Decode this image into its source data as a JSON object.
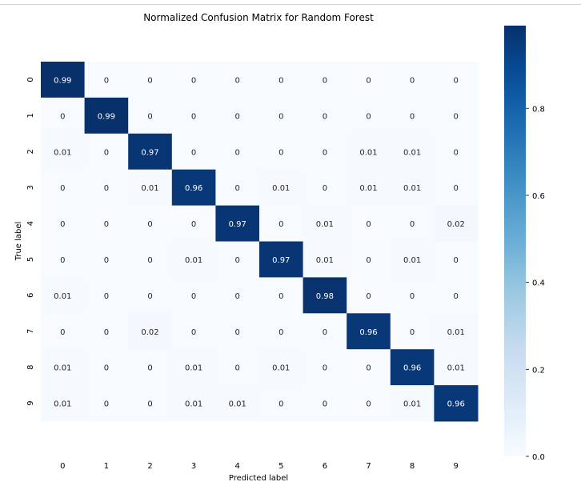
{
  "chart_data": {
    "type": "heatmap",
    "title": "Normalized Confusion Matrix for Random Forest",
    "xlabel": "Predicted label",
    "ylabel": "True label",
    "x_categories": [
      "0",
      "1",
      "2",
      "3",
      "4",
      "5",
      "6",
      "7",
      "8",
      "9"
    ],
    "y_categories": [
      "0",
      "1",
      "2",
      "3",
      "4",
      "5",
      "6",
      "7",
      "8",
      "9"
    ],
    "values": [
      [
        0.99,
        0,
        0,
        0,
        0,
        0,
        0,
        0,
        0,
        0
      ],
      [
        0,
        0.99,
        0,
        0,
        0,
        0,
        0,
        0,
        0,
        0
      ],
      [
        0.01,
        0,
        0.97,
        0,
        0,
        0,
        0,
        0.01,
        0.01,
        0
      ],
      [
        0,
        0,
        0.01,
        0.96,
        0,
        0.01,
        0,
        0.01,
        0.01,
        0
      ],
      [
        0,
        0,
        0,
        0,
        0.97,
        0,
        0.01,
        0,
        0,
        0.02
      ],
      [
        0,
        0,
        0,
        0.01,
        0,
        0.97,
        0.01,
        0,
        0.01,
        0
      ],
      [
        0.01,
        0,
        0,
        0,
        0,
        0,
        0.98,
        0,
        0,
        0
      ],
      [
        0,
        0,
        0.02,
        0,
        0,
        0,
        0,
        0.96,
        0,
        0.01
      ],
      [
        0.01,
        0,
        0,
        0.01,
        0,
        0.01,
        0,
        0,
        0.96,
        0.01
      ],
      [
        0.01,
        0,
        0,
        0.01,
        0.01,
        0,
        0,
        0,
        0.01,
        0.96
      ]
    ],
    "colormap": "Blues",
    "colorbar": {
      "range": [
        0,
        0.99
      ],
      "ticks": [
        0.0,
        0.2,
        0.4,
        0.6,
        0.8
      ],
      "tick_labels": [
        "0.0",
        "0.2",
        "0.4",
        "0.6",
        "0.8"
      ]
    }
  }
}
